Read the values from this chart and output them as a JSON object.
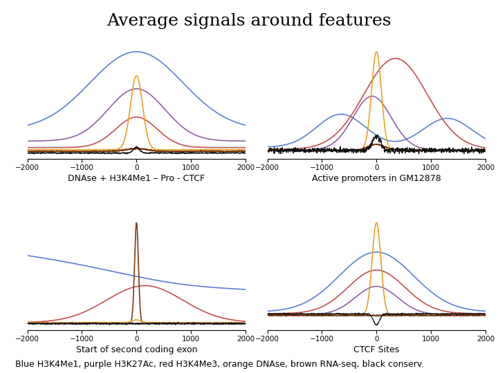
{
  "title": "Average signals around features",
  "title_fontsize": 18,
  "subplot_labels": [
    "DNAse + H3K4Me1 – Pro - CTCF",
    "Active promoters in GM12878",
    "Start of second coding exon",
    "CTCF Sites"
  ],
  "label_fontsize": 9,
  "footer": "Blue H3K4Me1, purple H3K27Ac, red H3K4Me3, orange DNAse, brown RNA-seq, black conserv.",
  "footer_fontsize": 9,
  "colors": {
    "blue": "#5B7FD4",
    "purple": "#9060A0",
    "red": "#C0504D",
    "orange": "#E8A020",
    "brown": "#7B3A10",
    "black": "#111111"
  },
  "xlim": [
    -2000,
    2000
  ],
  "xticks": [
    -2000,
    -1000,
    0,
    1000,
    2000
  ],
  "background": "#FFFFFF"
}
